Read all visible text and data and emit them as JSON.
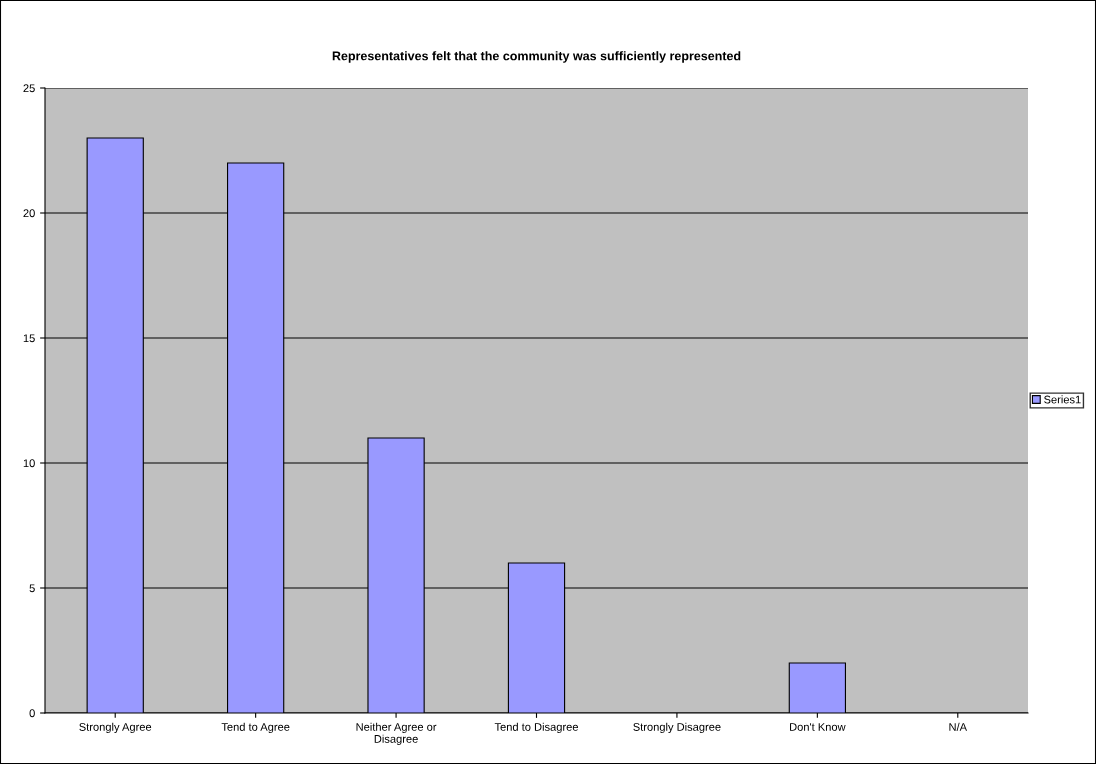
{
  "chart_data": {
    "type": "bar",
    "title": "Representatives felt that the community was sufficiently represented",
    "categories": [
      "Strongly Agree",
      "Tend to Agree",
      "Neither Agree or\nDisagree",
      "Tend to Disagree",
      "Strongly Disagree",
      "Don't Know",
      "N/A"
    ],
    "series": [
      {
        "name": "Series1",
        "color": "#9999ff",
        "values": [
          23,
          22,
          11,
          6,
          0,
          2,
          0
        ]
      }
    ],
    "ylim": [
      0,
      25
    ],
    "yticks": [
      0,
      5,
      10,
      15,
      20,
      25
    ],
    "grid": "y",
    "legend": "right"
  }
}
